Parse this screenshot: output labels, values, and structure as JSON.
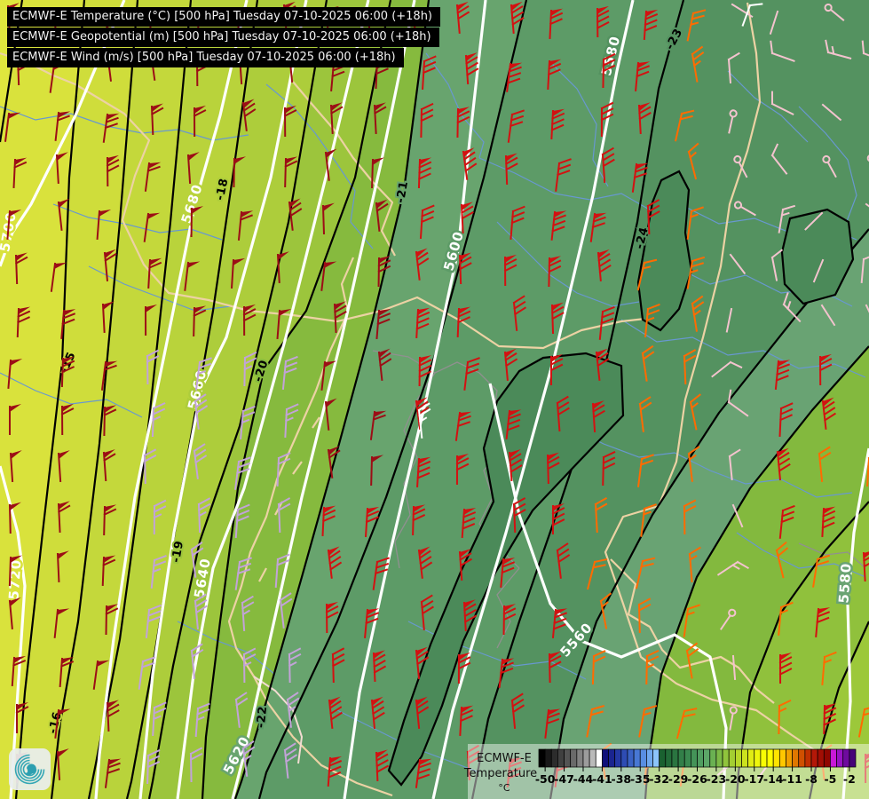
{
  "header": {
    "lines": [
      "ECMWF-E Temperature (°C) [500 hPa] Tuesday 07-10-2025 06:00 (+18h)",
      "ECMWF-E Geopotential (m) [500 hPa] Tuesday 07-10-2025 06:00 (+18h)",
      "ECMWF-E Wind (m/s) [500 hPa] Tuesday 07-10-2025 06:00 (+18h)"
    ]
  },
  "legend": {
    "title": "ECMWF-E",
    "subtitle": "Temperature",
    "unit": "°C",
    "ticks": [
      "-50",
      "-47",
      "-44",
      "-41",
      "-38",
      "-35",
      "-32",
      "-29",
      "-26",
      "-23",
      "-20",
      "-17",
      "-14",
      "-11",
      "-8",
      "-5",
      "-2"
    ],
    "cells": [
      "#000000",
      "#181818",
      "#2c2c2c",
      "#404040",
      "#545454",
      "#6a6a6a",
      "#828282",
      "#9c9c9c",
      "#bababa",
      "#ffffff",
      "#10107a",
      "#1a2490",
      "#2438a4",
      "#2e4cb4",
      "#3a62c4",
      "#4878d4",
      "#588ee2",
      "#70a8ee",
      "#8cc4fa",
      "#1a6130",
      "#226b38",
      "#2a7540",
      "#327f48",
      "#3a8950",
      "#449358",
      "#509d60",
      "#5ca768",
      "#6ab152",
      "#7cba46",
      "#90c43c",
      "#a4ce32",
      "#b8d828",
      "#cce21e",
      "#e0ec14",
      "#eef60c",
      "#f8fc04",
      "#ffff00",
      "#ffe400",
      "#ffc800",
      "#f0a000",
      "#e07800",
      "#d05000",
      "#c03000",
      "#b41808",
      "#a20e04",
      "#900600",
      "#c818d8",
      "#9812c4",
      "#6e0a9e",
      "#460478"
    ]
  },
  "map": {
    "geo_labels": [
      "5700",
      "5720",
      "5680",
      "5660",
      "5640",
      "5620",
      "5600",
      "5580",
      "5560",
      "5580"
    ],
    "temp_labels": [
      "-15",
      "-16",
      "-18",
      "-19",
      "-20",
      "-21",
      "-22",
      "-23",
      "-24"
    ],
    "band_colors": {
      "base": "#e0e73e",
      "t14": "#d9e23c",
      "t15": "#cfdd3b",
      "t16": "#c4d83b",
      "t17": "#b9d33b",
      "t18": "#adcd3b",
      "t19": "#9cc53c",
      "t20": "#86ba3e",
      "t21": "#68a46e",
      "t22": "#5d9b67",
      "t23": "#549260",
      "t24_patch": "#4b8a59",
      "r23": "#69a373",
      "r22": "#83b93e",
      "r21": "#90c13c",
      "r20": "#9cc83a"
    },
    "line_colors": {
      "geopotential": "#ffffff",
      "temperature": "#000000",
      "border": "#ecd2a4",
      "river": "#6898d0",
      "inner_border": "#909090"
    }
  },
  "wind": {
    "colors": {
      "darkred": "#9c0e16",
      "plum": "#c2a3d8",
      "red": "#d31111",
      "orange": "#ff6b00",
      "pink": "#f3c3ce",
      "white": "#ffffff"
    }
  }
}
